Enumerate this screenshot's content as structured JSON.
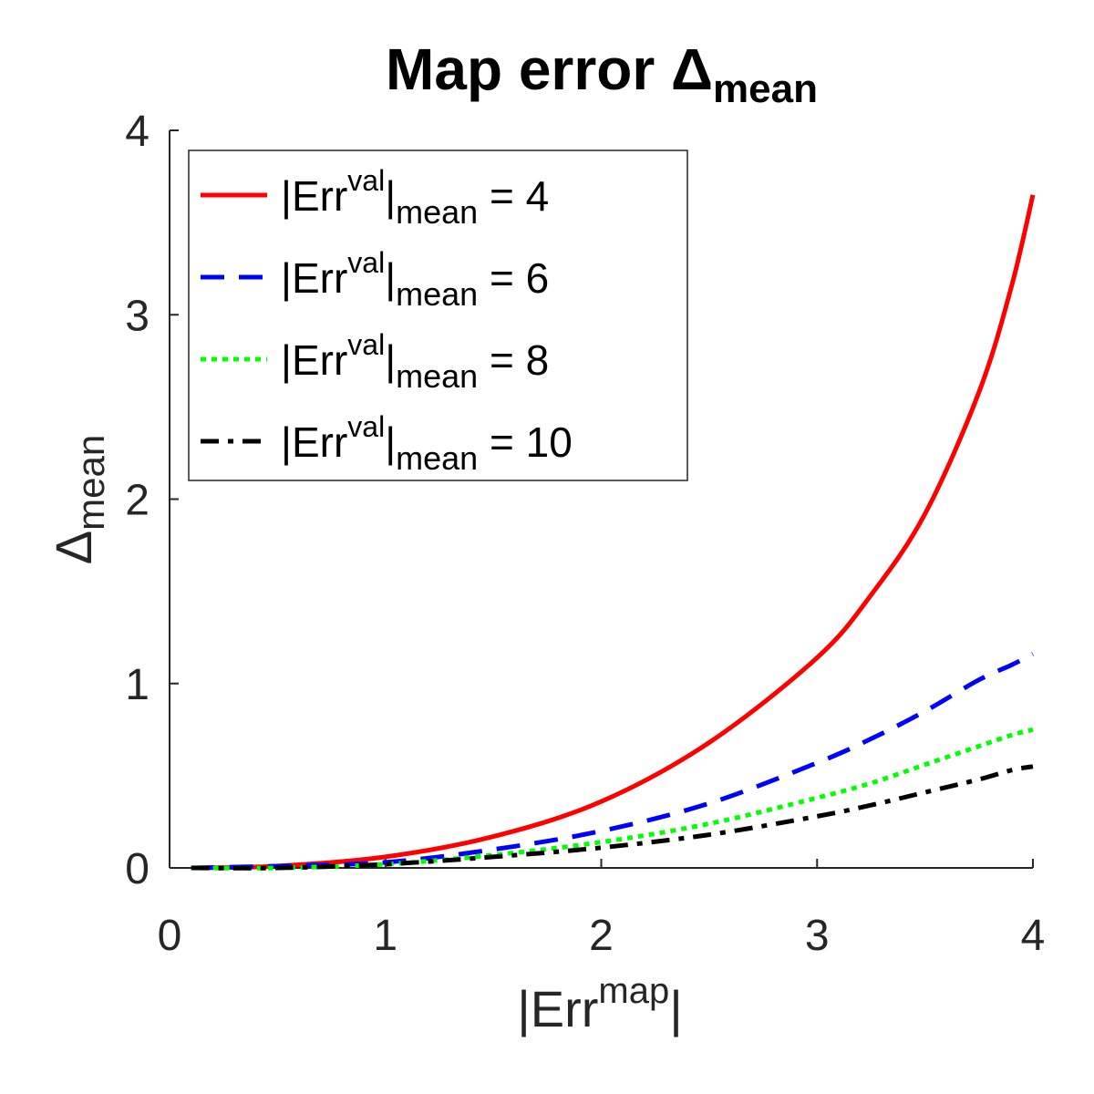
{
  "chart_data": {
    "type": "line",
    "title": {
      "main": "Map  error  Δ",
      "sub": "mean"
    },
    "xlabel": {
      "main": "|Err",
      "sup": "map",
      "tail": "|"
    },
    "ylabel": {
      "main": "Δ",
      "sub": "mean"
    },
    "xlim": [
      0,
      4
    ],
    "ylim": [
      0,
      4
    ],
    "xticks": [
      "0",
      "1",
      "2",
      "3",
      "4"
    ],
    "yticks": [
      "0",
      "1",
      "2",
      "3",
      "4"
    ],
    "grid": false,
    "legend_position": "top-left",
    "x": [
      0.1,
      0.5,
      1.0,
      1.5,
      2.0,
      2.5,
      3.0,
      3.25,
      3.5,
      3.75,
      3.9,
      4.0
    ],
    "series": [
      {
        "legend": {
          "prefix": "|Err",
          "sup": "val",
          "mid": "|",
          "sub": "mean",
          "suffix": "  =  4"
        },
        "color": "#ff0000",
        "dash": "solid",
        "values": [
          0.0,
          0.01,
          0.06,
          0.17,
          0.36,
          0.68,
          1.14,
          1.48,
          1.92,
          2.58,
          3.15,
          3.65
        ]
      },
      {
        "legend": {
          "prefix": "|Err",
          "sup": "val",
          "mid": "|",
          "sub": "mean",
          "suffix": "  =  6"
        },
        "color": "#0000ff",
        "dash": "dashed",
        "values": [
          0.0,
          0.01,
          0.03,
          0.1,
          0.2,
          0.35,
          0.57,
          0.7,
          0.85,
          1.02,
          1.1,
          1.16
        ]
      },
      {
        "legend": {
          "prefix": "|Err",
          "sup": "val",
          "mid": "|",
          "sub": "mean",
          "suffix": "  =  8"
        },
        "color": "#00ff00",
        "dash": "dotted",
        "values": [
          0.0,
          0.0,
          0.02,
          0.07,
          0.14,
          0.24,
          0.38,
          0.46,
          0.56,
          0.66,
          0.72,
          0.75
        ]
      },
      {
        "legend": {
          "prefix": "|Err",
          "sup": "val",
          "mid": "|",
          "sub": "mean",
          "suffix": "  =  10"
        },
        "color": "#000000",
        "dash": "dashdot",
        "values": [
          0.0,
          0.0,
          0.02,
          0.06,
          0.11,
          0.18,
          0.28,
          0.34,
          0.41,
          0.48,
          0.53,
          0.55
        ]
      }
    ]
  }
}
